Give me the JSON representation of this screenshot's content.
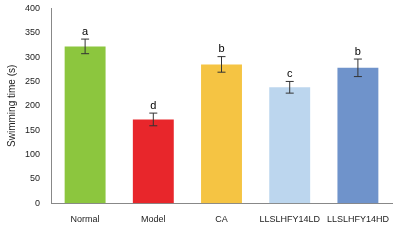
{
  "chart_data": {
    "type": "bar",
    "y_label": "Swimming time (s)",
    "categories": [
      "Normal",
      "Model",
      "CA",
      "LLSLHFY14LD",
      "LLSLHFY14HD"
    ],
    "values": [
      322,
      172,
      285,
      238,
      278
    ],
    "errors": [
      15,
      13,
      16,
      12,
      18
    ],
    "letters": [
      "a",
      "d",
      "b",
      "c",
      "b"
    ],
    "colors": [
      "#8cc63e",
      "#e8262b",
      "#f5c443",
      "#bcd6ee",
      "#6f93cb"
    ],
    "ylim": [
      0,
      400
    ],
    "yticks": [
      0,
      50,
      100,
      150,
      200,
      250,
      300,
      350,
      400
    ],
    "grid": false
  }
}
